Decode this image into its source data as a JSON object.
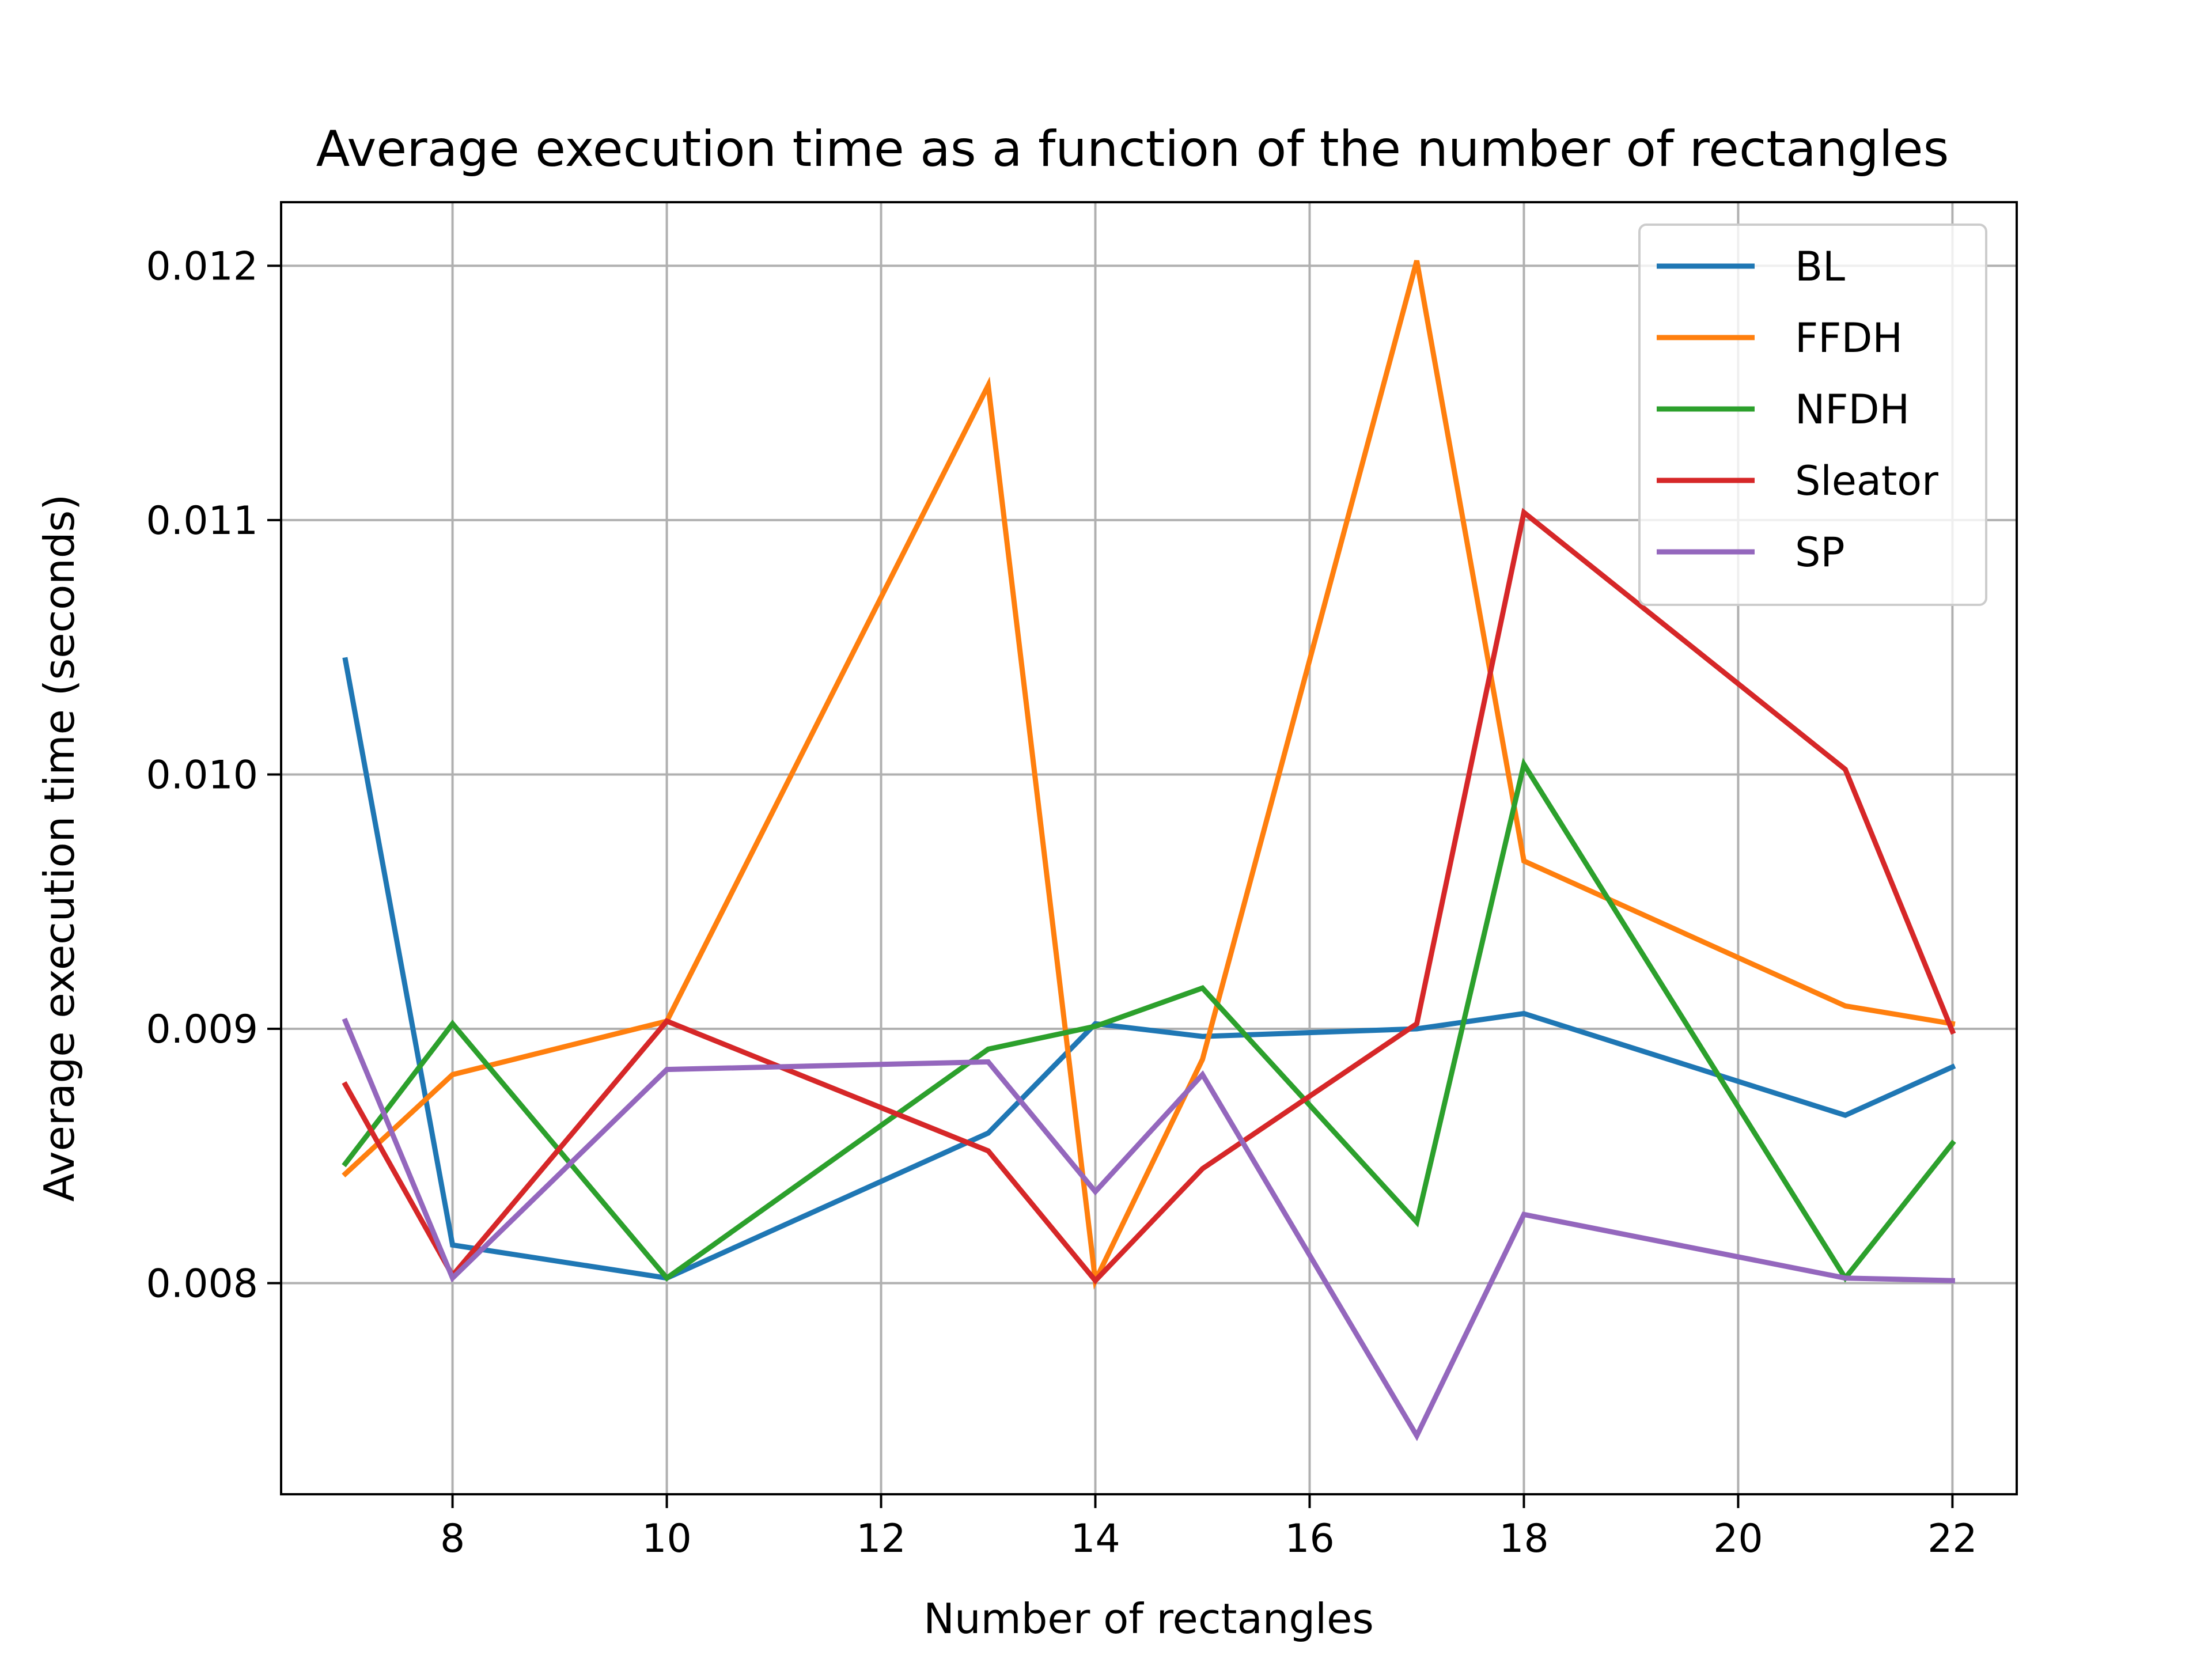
{
  "chart_data": {
    "type": "line",
    "title": "Average execution time as a function of the number of rectangles",
    "xlabel": "Number of rectangles",
    "ylabel": "Average execution time (seconds)",
    "xlim": [
      6.4,
      22.6
    ],
    "ylim": [
      0.00717,
      0.01225
    ],
    "xticks": [
      8,
      10,
      12,
      14,
      16,
      18,
      20,
      22
    ],
    "yticks": [
      0.008,
      0.009,
      0.01,
      0.011,
      0.012
    ],
    "xtick_labels": [
      "8",
      "10",
      "12",
      "14",
      "16",
      "18",
      "20",
      "22"
    ],
    "ytick_labels": [
      "0.008",
      "0.009",
      "0.010",
      "0.011",
      "0.012"
    ],
    "grid": true,
    "legend_position": "top-right",
    "x": [
      7,
      8,
      10,
      13,
      14,
      15,
      17,
      18,
      21,
      22
    ],
    "series": [
      {
        "name": "BL",
        "color": "#1f77b4",
        "values": [
          0.01045,
          0.00815,
          0.00802,
          0.00859,
          0.00902,
          0.00897,
          0.009,
          0.00906,
          0.00866,
          0.00885
        ]
      },
      {
        "name": "FFDH",
        "color": "#ff7f0e",
        "values": [
          0.00843,
          0.00882,
          0.00903,
          0.01153,
          0.00801,
          0.00888,
          0.01202,
          0.00966,
          0.00909,
          0.00902
        ]
      },
      {
        "name": "NFDH",
        "color": "#2ca02c",
        "values": [
          0.00847,
          0.00902,
          0.00802,
          0.00892,
          0.00901,
          0.00916,
          0.00824,
          0.01004,
          0.00802,
          0.00855
        ]
      },
      {
        "name": "Sleator",
        "color": "#d62728",
        "values": [
          0.00878,
          0.00803,
          0.00903,
          0.00852,
          0.00801,
          0.00845,
          0.00902,
          0.01103,
          0.01002,
          0.00899
        ]
      },
      {
        "name": "SP",
        "color": "#9467bd",
        "values": [
          0.00903,
          0.00802,
          0.00884,
          0.00887,
          0.00836,
          0.00882,
          0.0074,
          0.00827,
          0.00802,
          0.00801
        ]
      }
    ]
  }
}
